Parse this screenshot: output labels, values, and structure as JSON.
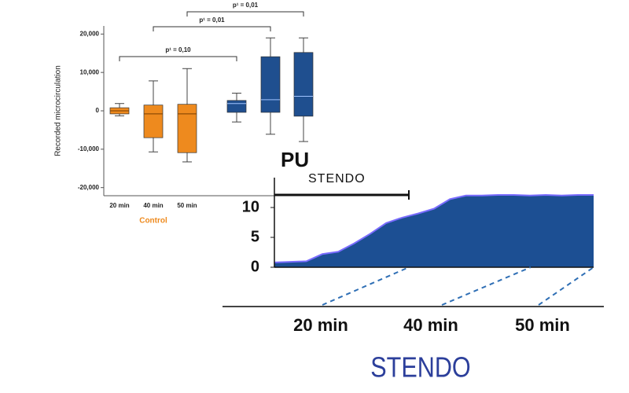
{
  "chart_data": [
    {
      "type": "box",
      "ylabel": "Recorded microcirculation",
      "categories": [
        "20 min",
        "40 min",
        "50 min",
        null,
        null,
        null
      ],
      "group_label": "Control",
      "boxes": [
        {
          "min": -1300,
          "q1": -800,
          "median": 0,
          "q3": 800,
          "max": 1900,
          "color": "#ee8a1e"
        },
        {
          "min": -10700,
          "q1": -7000,
          "median": -800,
          "q3": 1500,
          "max": 7800,
          "color": "#ee8a1e"
        },
        {
          "min": -13300,
          "q1": -10900,
          "median": -800,
          "q3": 1700,
          "max": 11000,
          "color": "#ee8a1e"
        },
        {
          "min": -2900,
          "q1": -400,
          "median": 1900,
          "q3": 2700,
          "max": 4600,
          "color": "#1f4f8f"
        },
        {
          "min": -6100,
          "q1": -400,
          "median": 2900,
          "q3": 14100,
          "max": 19000,
          "color": "#1f4f8f"
        },
        {
          "min": -8000,
          "q1": -1400,
          "median": 3800,
          "q3": 15200,
          "max": 19000,
          "color": "#1f4f8f"
        }
      ],
      "ylim": [
        -21500,
        21500
      ],
      "yticks": [
        {
          "value": 20000,
          "label": "20,000"
        },
        {
          "value": 10000,
          "label": "10,000"
        },
        0,
        {
          "value": -10000,
          "label": "-10,000"
        },
        {
          "value": -20000,
          "label": "-20,000"
        }
      ],
      "annotations": [
        {
          "text": "p¹ = 0,10",
          "from": 0,
          "to": 3
        },
        {
          "text": "p¹ = 0,01",
          "from": 1,
          "to": 4
        },
        {
          "text": "p¹ = 0,01",
          "from": 2,
          "to": 5
        }
      ]
    },
    {
      "type": "area",
      "ylabel": "PU",
      "annotation": "STENDO",
      "xlabel": "STENDO",
      "time_labels": [
        "20 min",
        "40 min",
        "50 min"
      ],
      "values": [
        0.8,
        0.9,
        1.0,
        2.2,
        2.6,
        4.0,
        5.6,
        7.4,
        8.3,
        9.0,
        9.8,
        11.4,
        12.0,
        12.0,
        12.1,
        12.1,
        12.0,
        12.1,
        12.0,
        12.1,
        12.1
      ],
      "color": "#1c4f93",
      "line_color": "#7a6cff",
      "ylim": [
        0,
        15
      ],
      "yticks": [
        0,
        5,
        10
      ]
    }
  ]
}
